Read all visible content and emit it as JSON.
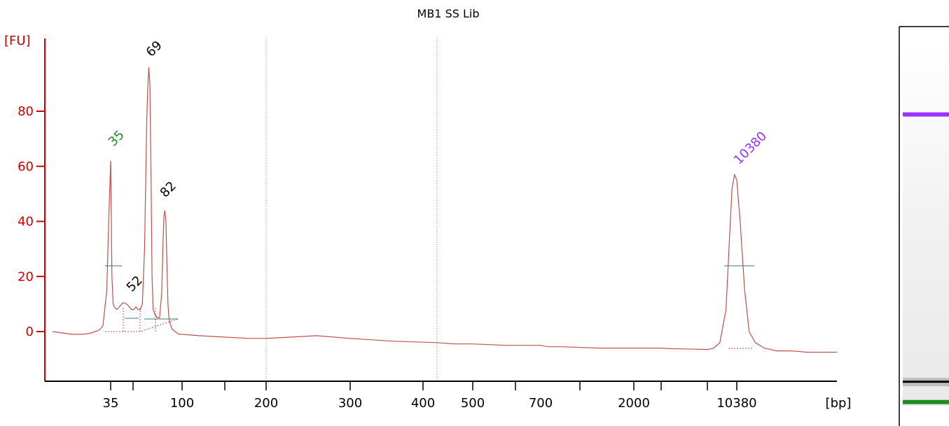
{
  "chart_data": {
    "type": "line",
    "title": "MB1 SS Lib",
    "ylabel": "[FU]",
    "xlabel": "[bp]",
    "ylim": [
      -15,
      105
    ],
    "y_ticks": [
      0,
      20,
      40,
      60,
      80
    ],
    "x_ticks": [
      "35",
      "100",
      "200",
      "300",
      "400",
      "500",
      "700",
      "2000",
      "10380"
    ],
    "grid": false,
    "series": [
      {
        "x": [
          20,
          25,
          28,
          30,
          32,
          33,
          34,
          34.5,
          35,
          35.5,
          36,
          37,
          38,
          40,
          42,
          45,
          48,
          50,
          52,
          54,
          56,
          58,
          60,
          62,
          64,
          66,
          67,
          68,
          69,
          70,
          71,
          72,
          74,
          76,
          78,
          80,
          81,
          82,
          83,
          84,
          85,
          86,
          87,
          88,
          90,
          93,
          97,
          100,
          120,
          150,
          180,
          200,
          230,
          260,
          300,
          350,
          400,
          450,
          500,
          600,
          700,
          800,
          1000,
          1500,
          2000,
          2500,
          3000,
          4000,
          5000,
          6000,
          7000,
          8000,
          8500,
          9000,
          9500,
          9800,
          10000,
          10200,
          10380,
          10600,
          10900,
          11200,
          11600,
          12200,
          13000,
          14000,
          15000,
          17000
        ],
        "y": [
          0,
          -1,
          -1,
          -0.5,
          0.5,
          2,
          15,
          40,
          62,
          42,
          20,
          10,
          9,
          8,
          9,
          10.5,
          10,
          9,
          8,
          8,
          9,
          8,
          8,
          10,
          30,
          75,
          88,
          96,
          90,
          60,
          20,
          8,
          6,
          5,
          5,
          14,
          30,
          42,
          44,
          40,
          25,
          10,
          5,
          3,
          1,
          0,
          -1,
          -1,
          -1.5,
          -2,
          -2.5,
          -2.5,
          -2,
          -1.5,
          -2.5,
          -3.5,
          -4,
          -4.5,
          -4.5,
          -5,
          -5,
          -5.5,
          -5.5,
          -6,
          -6,
          -6,
          -6,
          -6,
          -6.2,
          -6.3,
          -6.4,
          -6.5,
          -6,
          -4,
          8,
          35,
          52,
          57,
          55,
          40,
          15,
          0,
          -4,
          -6,
          -7,
          -7,
          -7.5,
          -7.5
        ]
      }
    ],
    "peak_labels": [
      {
        "text": "35",
        "x": 35,
        "y": 62,
        "color": "#228b22"
      },
      {
        "text": "52",
        "x": 52,
        "y": 10.5,
        "color": "#000000"
      },
      {
        "text": "69",
        "x": 69,
        "y": 96,
        "color": "#000000"
      },
      {
        "text": "82",
        "x": 82,
        "y": 44,
        "color": "#000000"
      },
      {
        "text": "10380",
        "x": 10380,
        "y": 57,
        "color": "#9b30ff"
      }
    ],
    "colors": {
      "axis": "#cc0000",
      "trace": "#c0504d",
      "x_axis": "#000000",
      "marker_line": "#808080"
    }
  },
  "gel": {
    "bands": [
      {
        "name": "upper-marker",
        "color": "#9b30ff",
        "level": 0.22
      },
      {
        "name": "sample-band",
        "color": "#000000",
        "level": 0.89
      },
      {
        "name": "lower-marker",
        "color": "#1e8c1e",
        "level": 0.94
      }
    ]
  }
}
